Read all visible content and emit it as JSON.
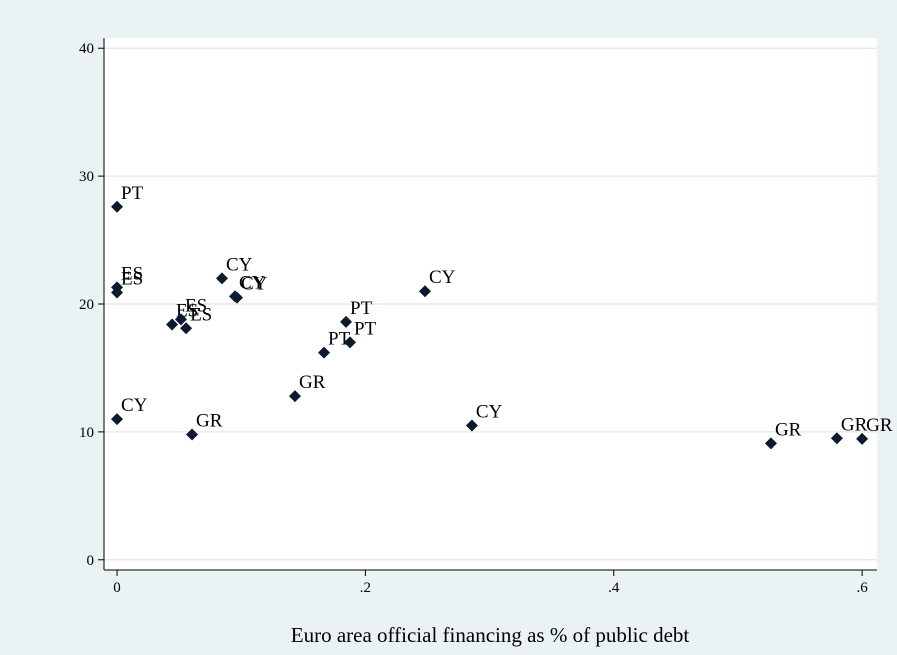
{
  "chart_data": {
    "type": "scatter",
    "x_label": "Euro area official financing as % of public debt",
    "x": [
      0,
      0,
      0,
      0,
      0.0443,
      0.0515,
      0.0556,
      0.0604,
      0.0845,
      0.095,
      0.0966,
      0.1433,
      0.1667,
      0.1844,
      0.1876,
      0.248,
      0.2858,
      0.5266,
      0.5797,
      0.6
    ],
    "values": [
      27.6,
      21.3,
      20.9,
      11.0,
      18.4,
      18.8,
      18.1,
      9.8,
      22.0,
      20.6,
      20.5,
      12.8,
      16.2,
      18.6,
      17.0,
      21.0,
      10.5,
      9.1,
      9.5,
      9.45
    ],
    "point_labels": [
      "PT",
      "ES",
      "ES",
      "CY",
      "ES",
      "ES",
      "ES",
      "GR",
      "CY",
      "CY",
      "CY",
      "GR",
      "PT",
      "PT",
      "PT",
      "CY",
      "CY",
      "GR",
      "GR",
      "GR"
    ],
    "color": "#0b1a2e",
    "xlim": [
      -0.0105,
      0.612
    ],
    "ylim": [
      -0.8,
      40.8
    ],
    "xticks": [
      0,
      {
        "value": 0.2,
        "label": ".2"
      },
      {
        "value": 0.4,
        "label": ".4"
      },
      {
        "value": 0.6,
        "label": ".6"
      }
    ],
    "yticks": [
      0,
      10,
      20,
      30,
      40
    ],
    "grid": true
  }
}
